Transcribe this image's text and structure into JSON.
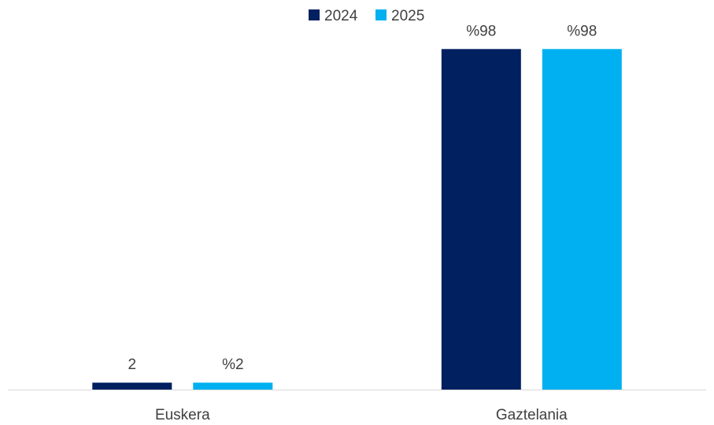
{
  "chart_data": {
    "type": "bar",
    "categories": [
      "Euskera",
      "Gaztelania"
    ],
    "series": [
      {
        "name": "2024",
        "values": [
          2,
          98
        ],
        "labels": [
          "2",
          "%98"
        ],
        "color": "#002060"
      },
      {
        "name": "2025",
        "values": [
          2,
          98
        ],
        "labels": [
          "%2",
          "%98"
        ],
        "color": "#00B0F0"
      }
    ],
    "ylim": [
      0,
      100
    ],
    "grid": false,
    "legend_position": "top-center",
    "axis_color": "#D9D9D9"
  }
}
